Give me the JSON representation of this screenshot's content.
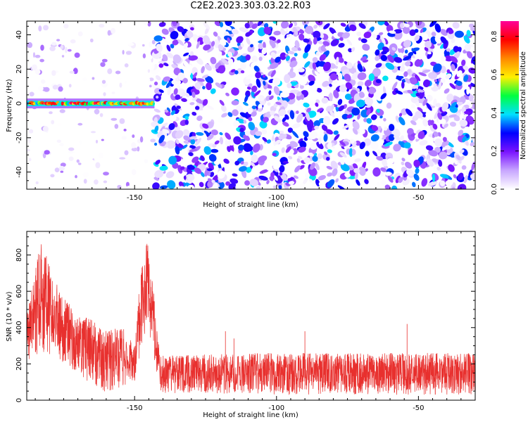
{
  "title": "C2E2.2023.303.03.22.R03",
  "chart_data": [
    {
      "type": "heatmap",
      "xlabel": "Height of straight line (km)",
      "ylabel": "Frequency (Hz)",
      "xlim": [
        -188,
        -30
      ],
      "ylim": [
        -50,
        48
      ],
      "xticks": [
        -150,
        -100,
        -50
      ],
      "xtick_labels": [
        "-150",
        "-100",
        "-50"
      ],
      "yticks": [
        -40,
        -20,
        0,
        20,
        40
      ],
      "ytick_labels": [
        "-40",
        "-20",
        "0",
        "20",
        "40"
      ],
      "colorbar": {
        "label": "Normalized spectral amplitude",
        "range": [
          0,
          0.88
        ],
        "ticks": [
          0.0,
          0.2,
          0.4,
          0.6,
          0.8
        ],
        "tick_labels": [
          "0.0",
          "0.2",
          "0.4",
          "0.6",
          "0.8"
        ],
        "colors": [
          "#ffffff",
          "#c8a6ff",
          "#7a14ff",
          "#0000ff",
          "#00e1ff",
          "#00ff40",
          "#fff000",
          "#ff8800",
          "#ff0000",
          "#ff0099"
        ]
      },
      "features": [
        {
          "name": "carrier",
          "x_range": [
            -188,
            -143
          ],
          "frequency": 0,
          "amplitude_max": 0.85
        },
        {
          "name": "noise",
          "x_range": [
            -143,
            -30
          ],
          "frequency_range": [
            -50,
            48
          ],
          "amplitude_max": 0.4
        },
        {
          "name": "sparse",
          "x_range": [
            -188,
            -143
          ],
          "frequency_range": [
            -50,
            48
          ],
          "amplitude_max": 0.15
        }
      ],
      "grid": false
    },
    {
      "type": "line",
      "xlabel": "Height of straight line (km)",
      "ylabel": "SNR (10 * v/v)",
      "xlim": [
        -188,
        -30
      ],
      "ylim": [
        0,
        930
      ],
      "xticks": [
        -150,
        -100,
        -50
      ],
      "xtick_labels": [
        "-150",
        "-100",
        "-50"
      ],
      "yticks": [
        0,
        200,
        400,
        600,
        800
      ],
      "ytick_labels": [
        "0",
        "200",
        "400",
        "600",
        "800"
      ],
      "color": "#e8302e",
      "envelope": [
        {
          "x": -188,
          "lo": 180,
          "hi": 480
        },
        {
          "x": -183,
          "lo": 250,
          "hi": 880
        },
        {
          "x": -180,
          "lo": 250,
          "hi": 750
        },
        {
          "x": -176,
          "lo": 200,
          "hi": 580
        },
        {
          "x": -170,
          "lo": 150,
          "hi": 480
        },
        {
          "x": -165,
          "lo": 80,
          "hi": 450
        },
        {
          "x": -160,
          "lo": 40,
          "hi": 380
        },
        {
          "x": -155,
          "lo": 60,
          "hi": 420
        },
        {
          "x": -150,
          "lo": 100,
          "hi": 300
        },
        {
          "x": -147,
          "lo": 320,
          "hi": 880
        },
        {
          "x": -145,
          "lo": 400,
          "hi": 860
        },
        {
          "x": -143,
          "lo": 200,
          "hi": 560
        },
        {
          "x": -141,
          "lo": 40,
          "hi": 250
        },
        {
          "x": -100,
          "lo": 30,
          "hi": 260
        },
        {
          "x": -60,
          "lo": 30,
          "hi": 260
        },
        {
          "x": -30,
          "lo": 30,
          "hi": 260
        }
      ],
      "spikes": [
        {
          "x": -118,
          "y": 380
        },
        {
          "x": -90,
          "y": 380
        },
        {
          "x": -54,
          "y": 420
        },
        {
          "x": -115,
          "y": 340
        }
      ]
    }
  ]
}
